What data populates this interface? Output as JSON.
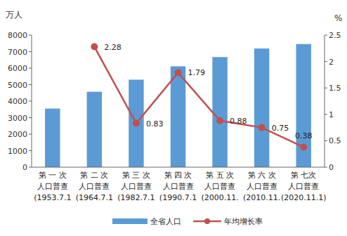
{
  "chart_data": {
    "type": "bar",
    "categories": [
      "第 一 次\n人口普查\n(1953.7.1",
      "第 二 次\n人口普查\n(1964.7.1",
      "第 三 次\n人口普查\n(1982.7.1",
      "第 四 次\n人口普查\n(1990.7.1",
      "第 五 次\n人口普查\n(2000.11.",
      "第 六 次\n人口普查\n(2010.11.",
      "第 七次\n人口普查\n(2020.11.1)"
    ],
    "y_label": "万人",
    "y2_label": "%",
    "ylim": [
      0,
      8000
    ],
    "yticks": [
      0,
      1000,
      2000,
      3000,
      4000,
      5000,
      6000,
      7000,
      8000
    ],
    "y2lim": [
      0,
      2.5
    ],
    "y2ticks": [
      0,
      0.5,
      1,
      1.5,
      2,
      2.5
    ],
    "grid": false,
    "legend": "bottom",
    "series": [
      {
        "name": "全省人口",
        "type": "bar",
        "color": "#5b9bd5",
        "values": [
          3550,
          4570,
          5300,
          6110,
          6670,
          7190,
          7460
        ]
      },
      {
        "name": "年均增长率",
        "type": "line",
        "axis": "y2",
        "color": "#c0504d",
        "marker": "circle",
        "line_style": "solid",
        "data_labels": true,
        "values": [
          null,
          2.28,
          0.83,
          1.79,
          0.88,
          0.75,
          0.38
        ]
      }
    ]
  }
}
